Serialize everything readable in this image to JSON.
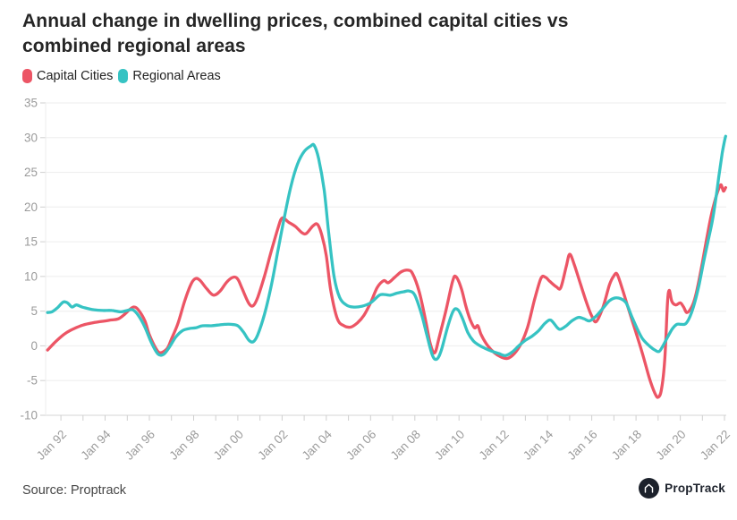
{
  "header": {
    "title_lines": [
      "Annual change in dwelling prices, combined capital cities vs",
      "combined regional areas"
    ]
  },
  "legend": [
    {
      "label": "Capital Cities",
      "color": "#ec5565"
    },
    {
      "label": "Regional Areas",
      "color": "#36c3c3"
    }
  ],
  "footer": {
    "source_label": "Source: Proptrack",
    "brand_name": "PropTrack"
  },
  "colors": {
    "capital_cities": "#ec5565",
    "regional_areas": "#36c3c3",
    "gridline": "#ededed",
    "axis_line": "#d6d6d6",
    "tick": "#cfcfcf",
    "axis_label": "#9b9b9b"
  },
  "chart_data": {
    "type": "line",
    "title": "Annual change in dwelling prices, combined capital cities vs combined regional areas",
    "xlabel": "",
    "ylabel": "",
    "ylim": [
      -10,
      35
    ],
    "y_ticks": [
      35,
      30,
      25,
      20,
      15,
      10,
      5,
      0,
      -5,
      -10
    ],
    "xlim": [
      1991.31,
      2022.08
    ],
    "x_minor_tick_every": 1,
    "grid": "horizontal",
    "legend_position": "top-left",
    "x_ticks": [
      {
        "label": "Jan 92",
        "year": 1992
      },
      {
        "label": "Jan 94",
        "year": 1994
      },
      {
        "label": "Jan 96",
        "year": 1996
      },
      {
        "label": "Jan 98",
        "year": 1998
      },
      {
        "label": "Jan 00",
        "year": 2000
      },
      {
        "label": "Jan 02",
        "year": 2002
      },
      {
        "label": "Jan 04",
        "year": 2004
      },
      {
        "label": "Jan 06",
        "year": 2006
      },
      {
        "label": "Jan 08",
        "year": 2008
      },
      {
        "label": "Jan 10",
        "year": 2010
      },
      {
        "label": "Jan 12",
        "year": 2012
      },
      {
        "label": "Jan 14",
        "year": 2014
      },
      {
        "label": "Jan 16",
        "year": 2016
      },
      {
        "label": "Jan 18",
        "year": 2018
      },
      {
        "label": "Jan 20",
        "year": 2020
      },
      {
        "label": "Jan 22",
        "year": 2022
      }
    ],
    "series": [
      {
        "name": "Capital Cities",
        "color": "#ec5565",
        "points": [
          [
            1991.4,
            -0.6
          ],
          [
            1991.7,
            0.4
          ],
          [
            1992.0,
            1.3
          ],
          [
            1992.3,
            2.0
          ],
          [
            1992.6,
            2.5
          ],
          [
            1993.0,
            3.0
          ],
          [
            1993.4,
            3.3
          ],
          [
            1993.8,
            3.5
          ],
          [
            1994.2,
            3.7
          ],
          [
            1994.6,
            3.9
          ],
          [
            1994.9,
            4.6
          ],
          [
            1995.1,
            5.2
          ],
          [
            1995.3,
            5.6
          ],
          [
            1995.5,
            5.2
          ],
          [
            1995.8,
            3.6
          ],
          [
            1996.0,
            1.6
          ],
          [
            1996.3,
            -0.4
          ],
          [
            1996.5,
            -1.0
          ],
          [
            1996.8,
            -0.4
          ],
          [
            1997.0,
            1.0
          ],
          [
            1997.3,
            3.3
          ],
          [
            1997.6,
            6.5
          ],
          [
            1997.9,
            9.0
          ],
          [
            1998.1,
            9.7
          ],
          [
            1998.3,
            9.4
          ],
          [
            1998.6,
            8.2
          ],
          [
            1998.9,
            7.3
          ],
          [
            1999.2,
            7.9
          ],
          [
            1999.5,
            9.2
          ],
          [
            1999.8,
            9.9
          ],
          [
            2000.0,
            9.6
          ],
          [
            2000.2,
            8.2
          ],
          [
            2000.5,
            6.1
          ],
          [
            2000.7,
            5.8
          ],
          [
            2000.9,
            7.0
          ],
          [
            2001.2,
            10.0
          ],
          [
            2001.5,
            13.5
          ],
          [
            2001.8,
            16.8
          ],
          [
            2002.0,
            18.4
          ],
          [
            2002.3,
            17.8
          ],
          [
            2002.6,
            17.2
          ],
          [
            2002.9,
            16.3
          ],
          [
            2003.1,
            16.2
          ],
          [
            2003.4,
            17.3
          ],
          [
            2003.6,
            17.5
          ],
          [
            2003.8,
            15.9
          ],
          [
            2004.0,
            13.0
          ],
          [
            2004.2,
            8.0
          ],
          [
            2004.5,
            3.9
          ],
          [
            2004.8,
            2.9
          ],
          [
            2005.1,
            2.7
          ],
          [
            2005.4,
            3.3
          ],
          [
            2005.7,
            4.4
          ],
          [
            2006.0,
            6.2
          ],
          [
            2006.3,
            8.4
          ],
          [
            2006.6,
            9.4
          ],
          [
            2006.8,
            9.1
          ],
          [
            2007.1,
            9.9
          ],
          [
            2007.4,
            10.7
          ],
          [
            2007.7,
            10.9
          ],
          [
            2007.9,
            10.4
          ],
          [
            2008.2,
            7.8
          ],
          [
            2008.5,
            3.5
          ],
          [
            2008.7,
            0.3
          ],
          [
            2008.9,
            -1.0
          ],
          [
            2009.1,
            1.2
          ],
          [
            2009.4,
            5.0
          ],
          [
            2009.7,
            9.2
          ],
          [
            2009.85,
            10.0
          ],
          [
            2010.1,
            8.3
          ],
          [
            2010.3,
            5.8
          ],
          [
            2010.5,
            3.8
          ],
          [
            2010.7,
            2.6
          ],
          [
            2010.85,
            2.9
          ],
          [
            2011.0,
            1.6
          ],
          [
            2011.3,
            0.0
          ],
          [
            2011.6,
            -1.0
          ],
          [
            2011.9,
            -1.6
          ],
          [
            2012.2,
            -1.8
          ],
          [
            2012.5,
            -1.1
          ],
          [
            2012.8,
            0.3
          ],
          [
            2013.1,
            2.7
          ],
          [
            2013.4,
            6.5
          ],
          [
            2013.7,
            9.7
          ],
          [
            2013.9,
            9.9
          ],
          [
            2014.1,
            9.3
          ],
          [
            2014.4,
            8.5
          ],
          [
            2014.6,
            8.4
          ],
          [
            2014.85,
            11.5
          ],
          [
            2015.0,
            13.2
          ],
          [
            2015.2,
            11.8
          ],
          [
            2015.5,
            8.8
          ],
          [
            2015.8,
            5.9
          ],
          [
            2016.0,
            4.3
          ],
          [
            2016.2,
            3.5
          ],
          [
            2016.5,
            5.5
          ],
          [
            2016.8,
            8.8
          ],
          [
            2017.0,
            10.1
          ],
          [
            2017.15,
            10.3
          ],
          [
            2017.4,
            8.0
          ],
          [
            2017.7,
            4.9
          ],
          [
            2018.0,
            1.9
          ],
          [
            2018.3,
            -1.2
          ],
          [
            2018.6,
            -4.6
          ],
          [
            2018.85,
            -6.8
          ],
          [
            2019.0,
            -7.4
          ],
          [
            2019.15,
            -6.3
          ],
          [
            2019.3,
            -2.0
          ],
          [
            2019.42,
            6.0
          ],
          [
            2019.5,
            8.0
          ],
          [
            2019.62,
            6.4
          ],
          [
            2019.8,
            5.9
          ],
          [
            2020.0,
            6.2
          ],
          [
            2020.15,
            5.6
          ],
          [
            2020.3,
            4.8
          ],
          [
            2020.5,
            5.5
          ],
          [
            2020.65,
            6.7
          ],
          [
            2020.8,
            8.7
          ],
          [
            2021.0,
            12.0
          ],
          [
            2021.2,
            15.5
          ],
          [
            2021.4,
            18.8
          ],
          [
            2021.6,
            21.3
          ],
          [
            2021.75,
            22.7
          ],
          [
            2021.85,
            23.2
          ],
          [
            2021.95,
            22.3
          ],
          [
            2022.05,
            22.8
          ]
        ]
      },
      {
        "name": "Regional Areas",
        "color": "#36c3c3",
        "points": [
          [
            1991.4,
            4.8
          ],
          [
            1991.6,
            4.9
          ],
          [
            1991.85,
            5.5
          ],
          [
            1992.1,
            6.3
          ],
          [
            1992.3,
            6.2
          ],
          [
            1992.5,
            5.6
          ],
          [
            1992.7,
            5.9
          ],
          [
            1992.95,
            5.6
          ],
          [
            1993.2,
            5.4
          ],
          [
            1993.5,
            5.2
          ],
          [
            1993.9,
            5.1
          ],
          [
            1994.3,
            5.1
          ],
          [
            1994.7,
            4.9
          ],
          [
            1995.0,
            5.1
          ],
          [
            1995.25,
            5.2
          ],
          [
            1995.5,
            4.4
          ],
          [
            1995.8,
            2.7
          ],
          [
            1996.1,
            0.4
          ],
          [
            1996.4,
            -1.2
          ],
          [
            1996.65,
            -1.2
          ],
          [
            1996.9,
            -0.2
          ],
          [
            1997.2,
            1.3
          ],
          [
            1997.5,
            2.2
          ],
          [
            1997.8,
            2.5
          ],
          [
            1998.1,
            2.6
          ],
          [
            1998.4,
            2.9
          ],
          [
            1998.8,
            2.9
          ],
          [
            1999.1,
            3.0
          ],
          [
            1999.4,
            3.1
          ],
          [
            1999.7,
            3.1
          ],
          [
            2000.0,
            2.9
          ],
          [
            2000.25,
            2.0
          ],
          [
            2000.5,
            0.8
          ],
          [
            2000.7,
            0.6
          ],
          [
            2000.9,
            1.6
          ],
          [
            2001.2,
            4.5
          ],
          [
            2001.5,
            8.5
          ],
          [
            2001.8,
            13.5
          ],
          [
            2002.1,
            18.5
          ],
          [
            2002.4,
            23.0
          ],
          [
            2002.7,
            26.2
          ],
          [
            2003.0,
            28.0
          ],
          [
            2003.3,
            28.8
          ],
          [
            2003.45,
            28.9
          ],
          [
            2003.65,
            27.0
          ],
          [
            2003.9,
            22.5
          ],
          [
            2004.1,
            16.5
          ],
          [
            2004.35,
            10.0
          ],
          [
            2004.6,
            7.0
          ],
          [
            2004.9,
            5.9
          ],
          [
            2005.2,
            5.6
          ],
          [
            2005.6,
            5.7
          ],
          [
            2006.0,
            6.2
          ],
          [
            2006.4,
            7.3
          ],
          [
            2006.65,
            7.4
          ],
          [
            2006.9,
            7.3
          ],
          [
            2007.2,
            7.6
          ],
          [
            2007.5,
            7.8
          ],
          [
            2007.75,
            7.9
          ],
          [
            2008.0,
            7.3
          ],
          [
            2008.3,
            4.6
          ],
          [
            2008.55,
            1.5
          ],
          [
            2008.8,
            -1.4
          ],
          [
            2009.0,
            -1.9
          ],
          [
            2009.2,
            -0.6
          ],
          [
            2009.5,
            2.9
          ],
          [
            2009.75,
            5.1
          ],
          [
            2009.95,
            5.2
          ],
          [
            2010.15,
            4.0
          ],
          [
            2010.4,
            1.9
          ],
          [
            2010.65,
            0.7
          ],
          [
            2010.9,
            0.1
          ],
          [
            2011.2,
            -0.4
          ],
          [
            2011.5,
            -0.8
          ],
          [
            2011.8,
            -1.1
          ],
          [
            2012.1,
            -1.4
          ],
          [
            2012.4,
            -0.9
          ],
          [
            2012.7,
            0.0
          ],
          [
            2013.0,
            0.8
          ],
          [
            2013.3,
            1.4
          ],
          [
            2013.6,
            2.2
          ],
          [
            2013.9,
            3.3
          ],
          [
            2014.15,
            3.7
          ],
          [
            2014.45,
            2.6
          ],
          [
            2014.6,
            2.4
          ],
          [
            2014.85,
            2.9
          ],
          [
            2015.1,
            3.6
          ],
          [
            2015.4,
            4.1
          ],
          [
            2015.65,
            3.9
          ],
          [
            2015.9,
            3.6
          ],
          [
            2016.2,
            4.3
          ],
          [
            2016.5,
            5.4
          ],
          [
            2016.8,
            6.5
          ],
          [
            2017.05,
            6.9
          ],
          [
            2017.3,
            6.8
          ],
          [
            2017.55,
            6.2
          ],
          [
            2017.8,
            4.3
          ],
          [
            2018.05,
            2.5
          ],
          [
            2018.3,
            1.0
          ],
          [
            2018.6,
            0.0
          ],
          [
            2018.85,
            -0.6
          ],
          [
            2019.05,
            -0.8
          ],
          [
            2019.25,
            0.2
          ],
          [
            2019.45,
            1.4
          ],
          [
            2019.65,
            2.5
          ],
          [
            2019.85,
            3.1
          ],
          [
            2020.05,
            3.1
          ],
          [
            2020.25,
            3.2
          ],
          [
            2020.45,
            4.3
          ],
          [
            2020.65,
            6.2
          ],
          [
            2020.85,
            8.8
          ],
          [
            2021.05,
            12.0
          ],
          [
            2021.25,
            15.0
          ],
          [
            2021.45,
            18.0
          ],
          [
            2021.6,
            21.0
          ],
          [
            2021.75,
            24.5
          ],
          [
            2021.9,
            27.8
          ],
          [
            2022.0,
            29.5
          ],
          [
            2022.05,
            30.2
          ]
        ]
      }
    ]
  }
}
